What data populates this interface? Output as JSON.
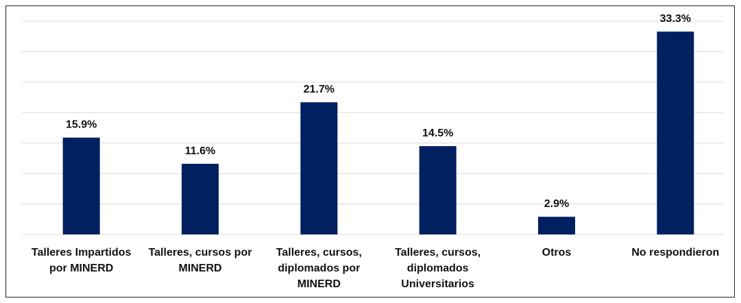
{
  "chart_data": {
    "type": "bar",
    "categories": [
      "Talleres Impartidos por MINERD",
      "Talleres, cursos por MINERD",
      "Talleres, cursos, diplomados por MINERD",
      "Talleres, cursos, diplomados Universitarios",
      "Otros",
      "No respondieron"
    ],
    "values": [
      15.9,
      11.6,
      21.7,
      14.5,
      2.9,
      33.3
    ],
    "value_labels": [
      "15.9%",
      "11.6%",
      "21.7%",
      "14.5%",
      "2.9%",
      "33.3%"
    ],
    "color": "#002060",
    "ylim": [
      0,
      35
    ],
    "yticks": [
      0,
      5,
      10,
      15,
      20,
      25,
      30,
      35
    ],
    "grid": true
  }
}
